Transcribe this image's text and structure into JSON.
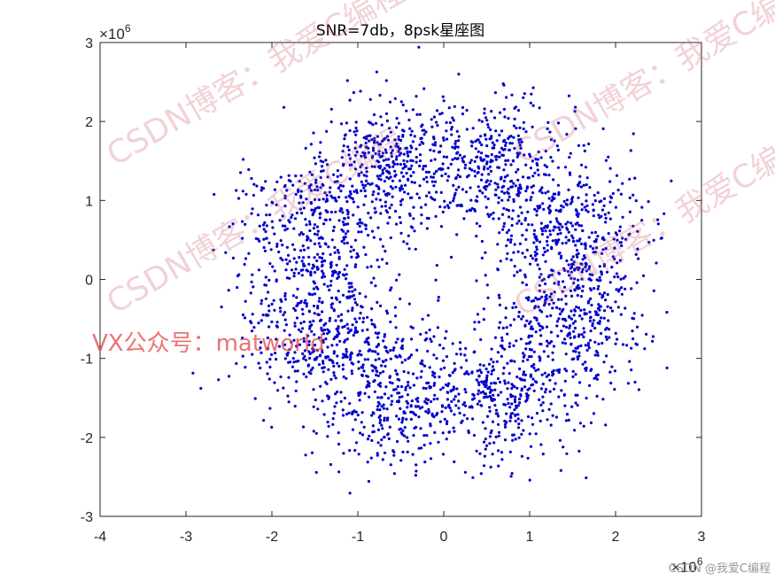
{
  "chart_data": {
    "type": "scatter",
    "title": "SNR=7db，8psk星座图",
    "xlabel": "",
    "ylabel": "",
    "xlim": [
      -4000000,
      3000000
    ],
    "ylim": [
      -3000000,
      3000000
    ],
    "x_ticks": [
      "-4",
      "-3",
      "-2",
      "-1",
      "0",
      "1",
      "2",
      "3"
    ],
    "y_ticks": [
      "3",
      "2",
      "1",
      "0",
      "-1",
      "-2",
      "-3"
    ],
    "x_exponent_base": "×10",
    "x_exponent": "6",
    "y_exponent_base": "×10",
    "y_exponent": "6",
    "grid": false,
    "marker_color": "#0000cc",
    "symbols": {
      "order": 8,
      "radius": 1600000,
      "phase_deg": 22.5,
      "count": 3000,
      "noise_std": 450000
    }
  },
  "watermarks": {
    "blog": "CSDN博客：我爱C编程",
    "vx": "VX公众号：matworld",
    "credit": "CSDN @我爱C编程"
  }
}
